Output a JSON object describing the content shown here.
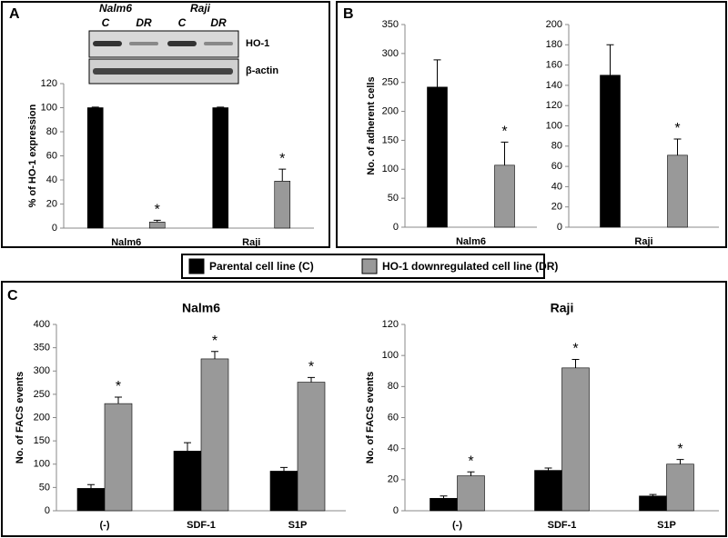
{
  "chart_data": [
    {
      "type": "bar",
      "panel": "A",
      "ylabel": "% of HO-1 expression",
      "blot": {
        "groups": [
          "Nalm6",
          "Raji"
        ],
        "lanes": [
          "C",
          "DR",
          "C",
          "DR"
        ],
        "bands": [
          "HO-1",
          "β-actin"
        ]
      },
      "categories": [
        "Nalm6",
        "Raji"
      ],
      "series": [
        {
          "name": "Parental cell line (C)",
          "color": "#000000",
          "values": [
            100,
            100
          ],
          "errors": [
            0.5,
            0.5
          ]
        },
        {
          "name": "HO-1 downregulated cell line (DR)",
          "color": "#999999",
          "values": [
            5,
            39
          ],
          "errors": [
            1.5,
            10
          ],
          "annotations": [
            "*",
            "*"
          ]
        }
      ],
      "ylim": [
        0,
        120
      ],
      "yticks": [
        0,
        20,
        40,
        60,
        80,
        100,
        120
      ]
    },
    {
      "type": "bar",
      "panel": "B",
      "ylabel": "No. of adherent cells",
      "categories": [
        "Nalm6"
      ],
      "series": [
        {
          "color": "#000000",
          "values": [
            242
          ],
          "errors": [
            47
          ]
        },
        {
          "color": "#999999",
          "values": [
            107
          ],
          "errors": [
            40
          ],
          "annotations": [
            "*"
          ]
        }
      ],
      "ylim": [
        0,
        350
      ],
      "yticks": [
        0,
        50,
        100,
        150,
        200,
        250,
        300,
        350
      ]
    },
    {
      "type": "bar",
      "categories": [
        "Raji"
      ],
      "series": [
        {
          "color": "#000000",
          "values": [
            150
          ],
          "errors": [
            30
          ]
        },
        {
          "color": "#999999",
          "values": [
            71
          ],
          "errors": [
            16
          ],
          "annotations": [
            "*"
          ]
        }
      ],
      "ylim": [
        0,
        200
      ],
      "yticks": [
        0,
        20,
        40,
        60,
        80,
        100,
        120,
        140,
        160,
        180,
        200
      ]
    },
    {
      "type": "bar",
      "panel": "C",
      "title": "Nalm6",
      "ylabel": "No. of FACS events",
      "categories": [
        "(-)",
        "SDF-1",
        "S1P"
      ],
      "series": [
        {
          "color": "#000000",
          "values": [
            48,
            128,
            85
          ],
          "errors": [
            8,
            18,
            8
          ]
        },
        {
          "color": "#999999",
          "values": [
            230,
            326,
            276
          ],
          "errors": [
            14,
            16,
            10
          ],
          "annotations": [
            "*",
            "*",
            "*"
          ]
        }
      ],
      "ylim": [
        0,
        400
      ],
      "yticks": [
        0,
        50,
        100,
        150,
        200,
        250,
        300,
        350,
        400
      ]
    },
    {
      "type": "bar",
      "title": "Raji",
      "ylabel": "No. of FACS events",
      "categories": [
        "(-)",
        "SDF-1",
        "S1P"
      ],
      "series": [
        {
          "color": "#000000",
          "values": [
            8,
            26,
            9.5
          ],
          "errors": [
            1.5,
            1.5,
            1
          ]
        },
        {
          "color": "#999999",
          "values": [
            22.5,
            92,
            30
          ],
          "errors": [
            2.5,
            5.5,
            3
          ],
          "annotations": [
            "*",
            "*",
            "*"
          ]
        }
      ],
      "ylim": [
        0,
        120
      ],
      "yticks": [
        0,
        20,
        40,
        60,
        80,
        100,
        120
      ]
    }
  ]
}
